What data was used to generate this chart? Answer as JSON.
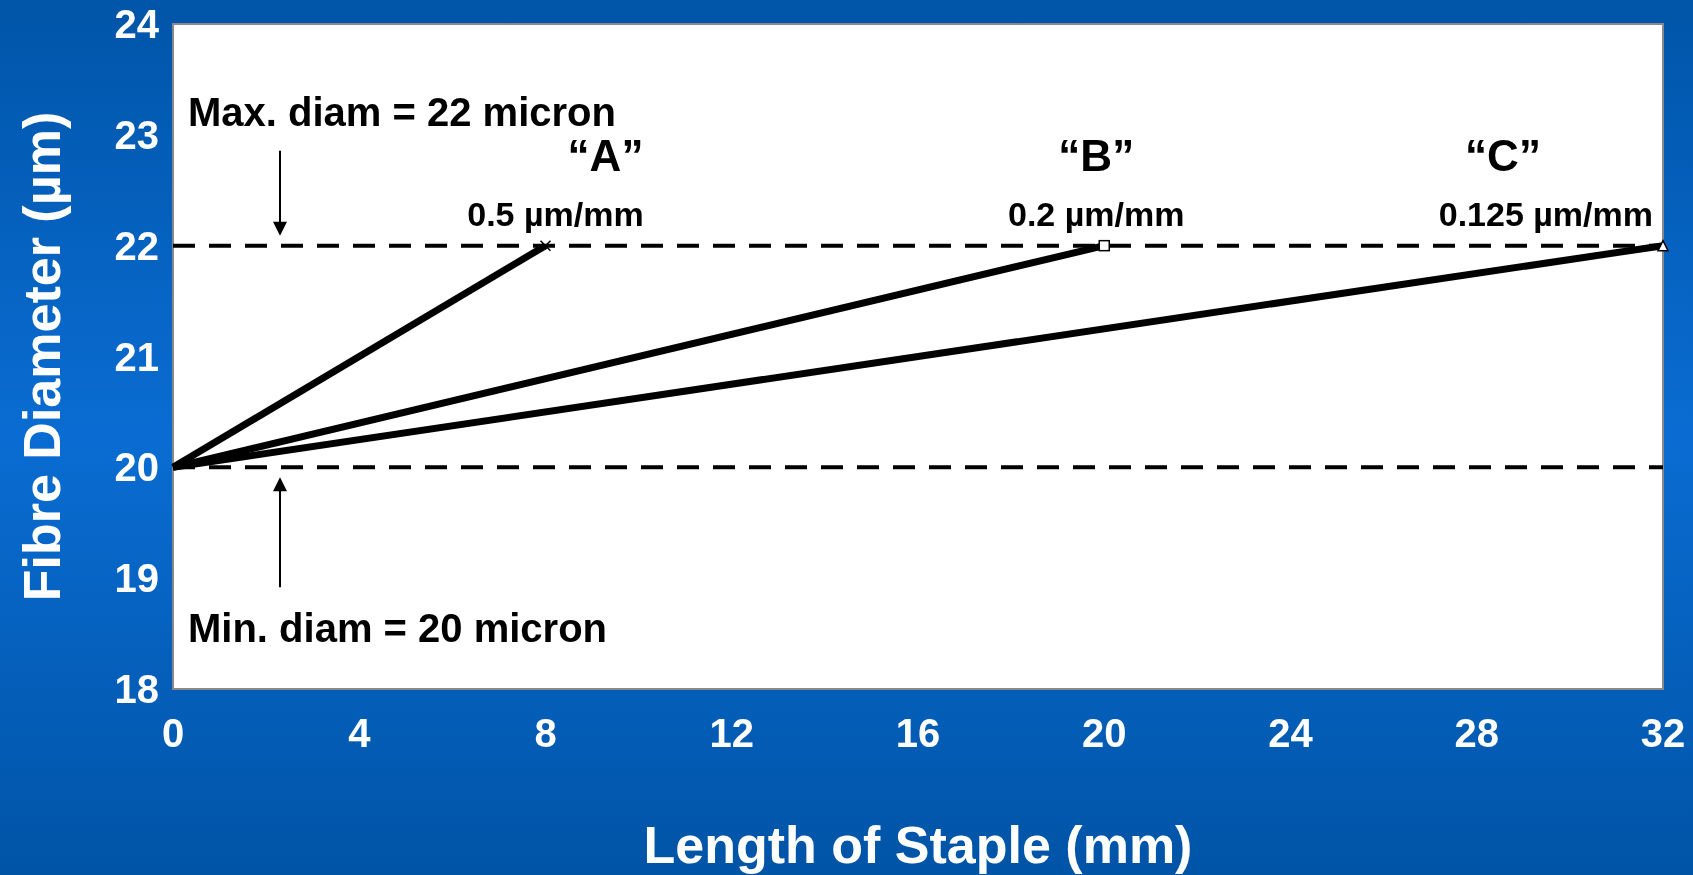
{
  "chart_data": {
    "type": "line",
    "xlabel": "Length of Staple (mm)",
    "ylabel": "Fibre Diameter (µm)",
    "xlim": [
      0,
      32
    ],
    "ylim": [
      18,
      24
    ],
    "xticks": [
      0,
      4,
      8,
      12,
      16,
      20,
      24,
      28,
      32
    ],
    "yticks": [
      18,
      19,
      20,
      21,
      22,
      23,
      24
    ],
    "grid": false,
    "line_style": "solid",
    "series": [
      {
        "name": "“A”",
        "color": "#000000",
        "marker": "cross",
        "x": [
          0,
          8
        ],
        "values": [
          20,
          22
        ]
      },
      {
        "name": "“B”",
        "color": "#000000",
        "marker": "square",
        "x": [
          0,
          20
        ],
        "values": [
          20,
          22
        ]
      },
      {
        "name": "“C”",
        "color": "#000000",
        "marker": "triangle",
        "x": [
          0,
          32
        ],
        "values": [
          20,
          22
        ]
      }
    ],
    "ref_lines": [
      {
        "axis": "y",
        "value": 22,
        "color": "#000000",
        "line_style": "dashed"
      },
      {
        "axis": "y",
        "value": 20,
        "color": "#000000",
        "line_style": "dashed"
      }
    ],
    "annotations": [
      {
        "text": "0.5 µm/mm",
        "x": 8,
        "y": 22
      },
      {
        "text": "0.2 µm/mm",
        "x": 20,
        "y": 22
      },
      {
        "text": "0.125 µm/mm",
        "x": 32,
        "y": 22
      },
      "Max. diam = 22 micron",
      "Min. diam = 20 micron"
    ]
  }
}
